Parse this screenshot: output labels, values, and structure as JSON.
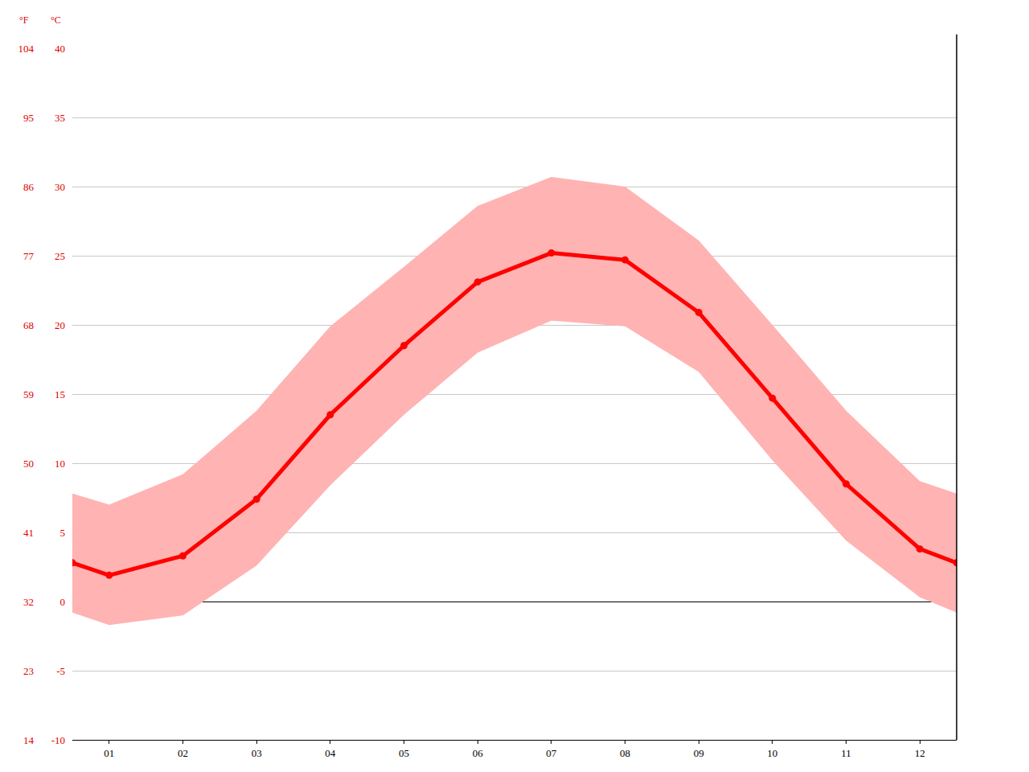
{
  "chart_data": {
    "type": "line",
    "y_label": "°C",
    "y2_label": "°F",
    "x": [
      0.5,
      1,
      2,
      3,
      4,
      5,
      6,
      7,
      8,
      9,
      10,
      11,
      12,
      12.5
    ],
    "xlim": [
      0.5,
      12.5
    ],
    "xticks": [
      {
        "value": 1,
        "label": "01"
      },
      {
        "value": 2,
        "label": "02"
      },
      {
        "value": 3,
        "label": "03"
      },
      {
        "value": 4,
        "label": "04"
      },
      {
        "value": 5,
        "label": "05"
      },
      {
        "value": 6,
        "label": "06"
      },
      {
        "value": 7,
        "label": "07"
      },
      {
        "value": 8,
        "label": "08"
      },
      {
        "value": 9,
        "label": "09"
      },
      {
        "value": 10,
        "label": "10"
      },
      {
        "value": 11,
        "label": "11"
      },
      {
        "value": 12,
        "label": "12"
      }
    ],
    "ylim": [
      -10,
      40
    ],
    "yticks": [
      -10,
      -5,
      0,
      5,
      10,
      15,
      20,
      25,
      30,
      35,
      40
    ],
    "y2lim": [
      14,
      104
    ],
    "y2ticks": [
      14,
      23,
      32,
      41,
      50,
      59,
      68,
      77,
      86,
      95,
      104
    ],
    "grid": true,
    "series": [
      {
        "type": "band",
        "color": "#ffb3b3",
        "low": [
          -0.8,
          -1.7,
          -1.0,
          2.6,
          8.4,
          13.5,
          18.0,
          20.3,
          19.9,
          16.6,
          10.2,
          4.4,
          0.3,
          -0.8
        ],
        "high": [
          7.8,
          7.0,
          9.2,
          13.8,
          19.9,
          24.2,
          28.6,
          30.7,
          30.0,
          26.1,
          20.0,
          13.8,
          8.7,
          7.8
        ]
      },
      {
        "type": "line",
        "color": "#ff0000",
        "marker": "circle",
        "values": [
          2.8,
          1.9,
          3.3,
          7.4,
          13.5,
          18.5,
          23.1,
          25.2,
          24.7,
          20.9,
          14.7,
          8.5,
          3.8,
          2.8
        ]
      }
    ]
  }
}
